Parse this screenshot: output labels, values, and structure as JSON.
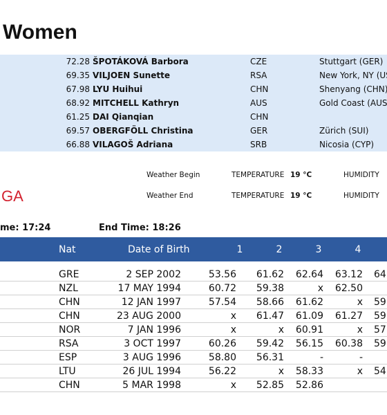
{
  "header": {
    "title": "Women"
  },
  "records": [
    {
      "mark": "72.28",
      "name": "ŠPOTÁKOVÁ Barbora",
      "nat": "CZE",
      "venue": "Stuttgart (GER)"
    },
    {
      "mark": "69.35",
      "name": "VILJOEN Sunette",
      "nat": "RSA",
      "venue": "New York, NY (US"
    },
    {
      "mark": "67.98",
      "name": "LYU Huihui",
      "nat": "CHN",
      "venue": "Shenyang (CHN)"
    },
    {
      "mark": "68.92",
      "name": "MITCHELL Kathryn",
      "nat": "AUS",
      "venue": "Gold Coast (AUS)"
    },
    {
      "mark": "61.25",
      "name": "DAI Qianqian",
      "nat": "CHN"
    },
    {
      "mark": "69.57",
      "name": "OBERGFÖLL Christina",
      "nat": "GER",
      "venue": "Zürich (SUI)"
    },
    {
      "mark": "66.88",
      "name": "VILAGOŠ Adriana",
      "nat": "SRB",
      "venue": "Nicosia (CYP)"
    }
  ],
  "logo": "GA",
  "weather": [
    {
      "label": "Weather Begin",
      "temp_label": "TEMPERATURE",
      "temp": "19 °C",
      "humidity_label": "HUMIDITY"
    },
    {
      "label": "Weather End",
      "temp_label": "TEMPERATURE",
      "temp": "19 °C",
      "humidity_label": "HUMIDITY"
    }
  ],
  "times": {
    "start": "me: 17:24",
    "end": "End Time: 18:26"
  },
  "table": {
    "columns": [
      "Nat",
      "Date of Birth",
      "1",
      "2",
      "3",
      "4"
    ],
    "rows": [
      [
        "GRE",
        "2 SEP 2002",
        "53.56",
        "61.62",
        "62.64",
        "63.12",
        "64"
      ],
      [
        "NZL",
        "17 MAY 1994",
        "60.72",
        "59.38",
        "x",
        "62.50"
      ],
      [
        "CHN",
        "12 JAN 1997",
        "57.54",
        "58.66",
        "61.62",
        "x",
        "59"
      ],
      [
        "CHN",
        "23 AUG 2000",
        "x",
        "61.47",
        "61.09",
        "61.27",
        "59"
      ],
      [
        "NOR",
        "7 JAN 1996",
        "x",
        "x",
        "60.91",
        "x",
        "57"
      ],
      [
        "RSA",
        "3 OCT 1997",
        "60.26",
        "59.42",
        "56.15",
        "60.38",
        "59"
      ],
      [
        "ESP",
        "3 AUG 1996",
        "58.80",
        "56.31",
        "-",
        "-"
      ],
      [
        "LTU",
        "26 JUL 1994",
        "56.22",
        "x",
        "58.33",
        "x",
        "54"
      ],
      [
        "CHN",
        "5 MAR 1998",
        "x",
        "52.85",
        "52.86"
      ]
    ]
  }
}
